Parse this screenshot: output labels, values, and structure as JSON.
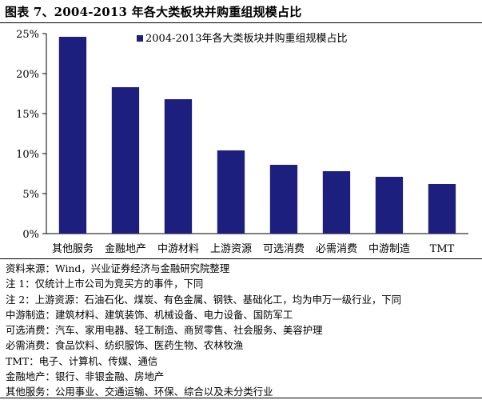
{
  "title": "图表 7、2004-2013 年各大类板块并购重组规模占比",
  "chart_data": {
    "type": "bar",
    "categories": [
      "其他服务",
      "金融地产",
      "中游材料",
      "上游资源",
      "可选消费",
      "必需消费",
      "中游制造",
      "TMT"
    ],
    "series": [
      {
        "name": "2004-2013年各大类板块并购重组规模占比",
        "values": [
          24.6,
          18.3,
          16.8,
          10.4,
          8.6,
          7.8,
          7.1,
          6.2
        ]
      }
    ],
    "yticks": [
      "0%",
      "5%",
      "10%",
      "15%",
      "20%",
      "25%"
    ],
    "ylim": [
      0,
      25
    ],
    "legend_position": "top-right",
    "grid": false,
    "bar_color": "#1d1f7e"
  },
  "notes": [
    "资料来源：Wind，兴业证券经济与金融研究院整理",
    "注 1：仅统计上市公司为竞买方的事件，下同",
    "注 2：上游资源：石油石化、煤炭、有色金属、钢铁、基础化工，均为申万一级行业，下同",
    "中游制造：建筑材料、建筑装饰、机械设备、电力设备、国防军工",
    "可选消费：汽车、家用电器、轻工制造、商贸零售、社会服务、美容护理",
    "必需消费：食品饮料、纺织服饰、医药生物、农林牧渔",
    "TMT：电子、计算机、传媒、通信",
    "金融地产：银行、非银金融、房地产",
    "其他服务：公用事业、交通运输、环保、综合以及未分类行业"
  ]
}
